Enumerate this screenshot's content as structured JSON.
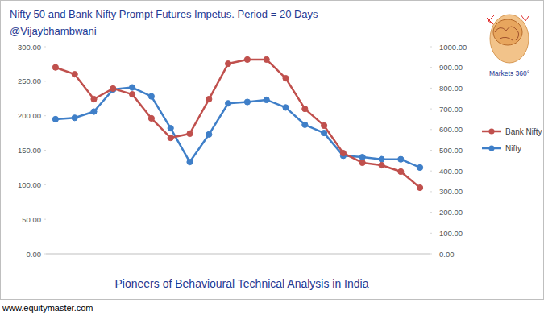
{
  "chart_data": {
    "type": "line",
    "title": "Nifty 50 and Bank Nifty Prompt Futures Impetus. Period = 20 Days",
    "subtitle": "@Vijaybhambwani",
    "annotations": [
      "Pioneers of Behavioural Technical Analysis in India",
      "Markets 360°",
      "www.equitymaster.com"
    ],
    "categories": [
      null,
      null,
      null,
      null,
      null,
      null,
      null,
      null,
      null,
      null,
      null,
      null,
      null,
      null,
      null,
      null,
      null,
      null,
      null,
      null
    ],
    "series": [
      {
        "name": "Bank Nifty",
        "color": "#c0504d",
        "axis": "y2",
        "marker": "circle",
        "values": [
          900,
          867,
          747,
          798,
          770,
          654,
          560,
          580,
          747,
          918,
          938,
          938,
          848,
          700,
          619,
          486,
          440,
          428,
          397,
          319
        ]
      },
      {
        "name": "Nifty",
        "color": "#3f7fc8",
        "axis": "y",
        "marker": "circle",
        "values": [
          195,
          197,
          206,
          238,
          241,
          228,
          182,
          133,
          173,
          218,
          220,
          223,
          212,
          187,
          175,
          142,
          140,
          137,
          137,
          125
        ]
      }
    ],
    "ylim": [
      0,
      300
    ],
    "yticks": [
      {
        "value": 0,
        "label": "0.00"
      },
      {
        "value": 50,
        "label": "50.00"
      },
      {
        "value": 100,
        "label": "100.00"
      },
      {
        "value": 150,
        "label": "150.00"
      },
      {
        "value": 200,
        "label": "200.00"
      },
      {
        "value": 250,
        "label": "250.00"
      },
      {
        "value": 300,
        "label": "300.00"
      }
    ],
    "y2lim": [
      0,
      1000
    ],
    "y2ticks": [
      {
        "value": 0,
        "label": "0.00"
      },
      {
        "value": 100,
        "label": "100.00"
      },
      {
        "value": 200,
        "label": "200.00"
      },
      {
        "value": 300,
        "label": "300.00"
      },
      {
        "value": 400,
        "label": "400.00"
      },
      {
        "value": 500,
        "label": "500.00"
      },
      {
        "value": 600,
        "label": "600.00"
      },
      {
        "value": 700,
        "label": "700.00"
      },
      {
        "value": 800,
        "label": "800.00"
      },
      {
        "value": 900,
        "label": "900.00"
      },
      {
        "value": 1000,
        "label": "1000.00"
      }
    ],
    "grid": false,
    "legend": "right",
    "tick_labels": "y"
  }
}
